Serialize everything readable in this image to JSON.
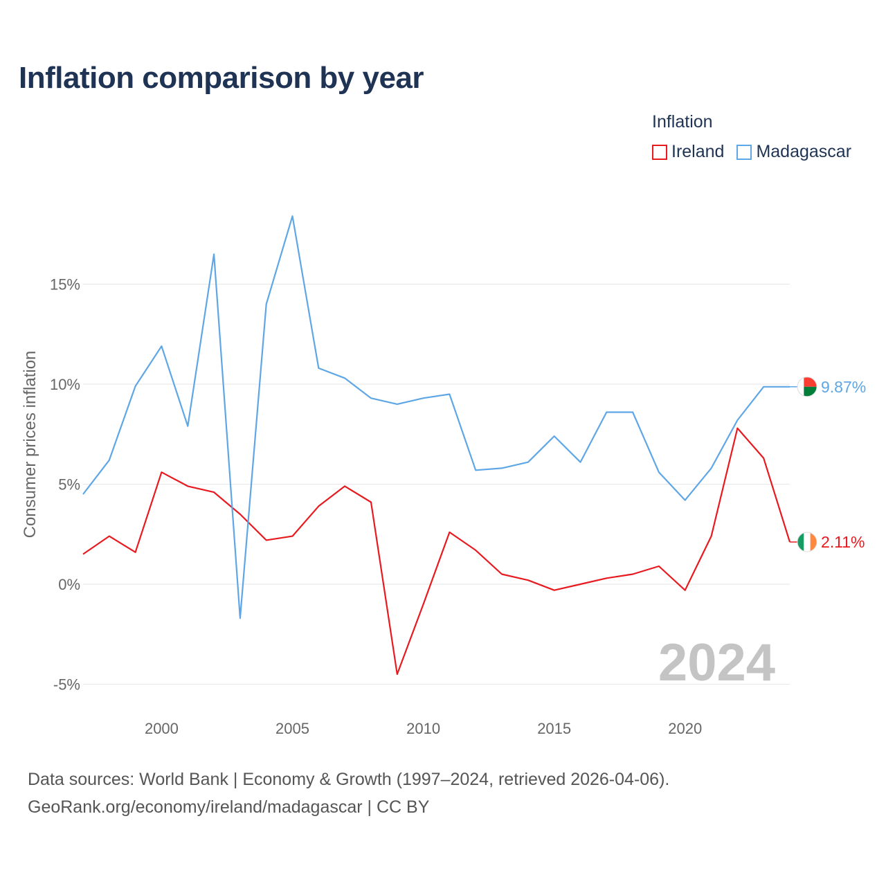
{
  "title": "Inflation comparison by year",
  "legend": {
    "title": "Inflation",
    "items": [
      {
        "label": "Ireland",
        "color": "#e8191f"
      },
      {
        "label": "Madagascar",
        "color": "#5ea6e6"
      }
    ]
  },
  "footer": {
    "line1": "Data sources: World Bank | Economy & Growth (1997–2024, retrieved 2026-04-06).",
    "line2": "GeoRank.org/economy/ireland/madagascar | CC BY"
  },
  "chart_data": {
    "type": "line",
    "title": "Inflation comparison by year",
    "xlabel": "",
    "ylabel": "Consumer prices inflation",
    "xlim": [
      1997,
      2024
    ],
    "ylim": [
      -5,
      20
    ],
    "yticks": [
      -5,
      0,
      5,
      10,
      15
    ],
    "ytick_labels": [
      "-5%",
      "0%",
      "5%",
      "10%",
      "15%"
    ],
    "xticks": [
      2000,
      2005,
      2010,
      2015,
      2020
    ],
    "xtick_labels": [
      "2000",
      "2005",
      "2010",
      "2015",
      "2020"
    ],
    "grid": true,
    "watermark_year": "2024",
    "x": [
      1997,
      1998,
      1999,
      2000,
      2001,
      2002,
      2003,
      2004,
      2005,
      2006,
      2007,
      2008,
      2009,
      2010,
      2011,
      2012,
      2013,
      2014,
      2015,
      2016,
      2017,
      2018,
      2019,
      2020,
      2021,
      2022,
      2023,
      2024
    ],
    "series": [
      {
        "name": "Ireland",
        "color": "#e8191f",
        "end_label": "2.11%",
        "flag": "ireland-flag-icon",
        "values": [
          1.5,
          2.4,
          1.6,
          5.6,
          4.9,
          4.6,
          3.5,
          2.2,
          2.4,
          3.9,
          4.9,
          4.1,
          -4.5,
          -1.0,
          2.6,
          1.7,
          0.5,
          0.2,
          -0.3,
          0.0,
          0.3,
          0.5,
          0.9,
          -0.3,
          2.4,
          7.8,
          6.3,
          2.11
        ]
      },
      {
        "name": "Madagascar",
        "color": "#5ea6e6",
        "end_label": "9.87%",
        "flag": "madagascar-flag-icon",
        "values": [
          4.5,
          6.2,
          9.9,
          11.9,
          7.9,
          16.5,
          -1.7,
          14.0,
          18.4,
          10.8,
          10.3,
          9.3,
          9.0,
          9.3,
          9.5,
          5.7,
          5.8,
          6.1,
          7.4,
          6.1,
          8.6,
          8.6,
          5.6,
          4.2,
          5.8,
          8.2,
          9.87,
          9.87
        ]
      }
    ]
  }
}
